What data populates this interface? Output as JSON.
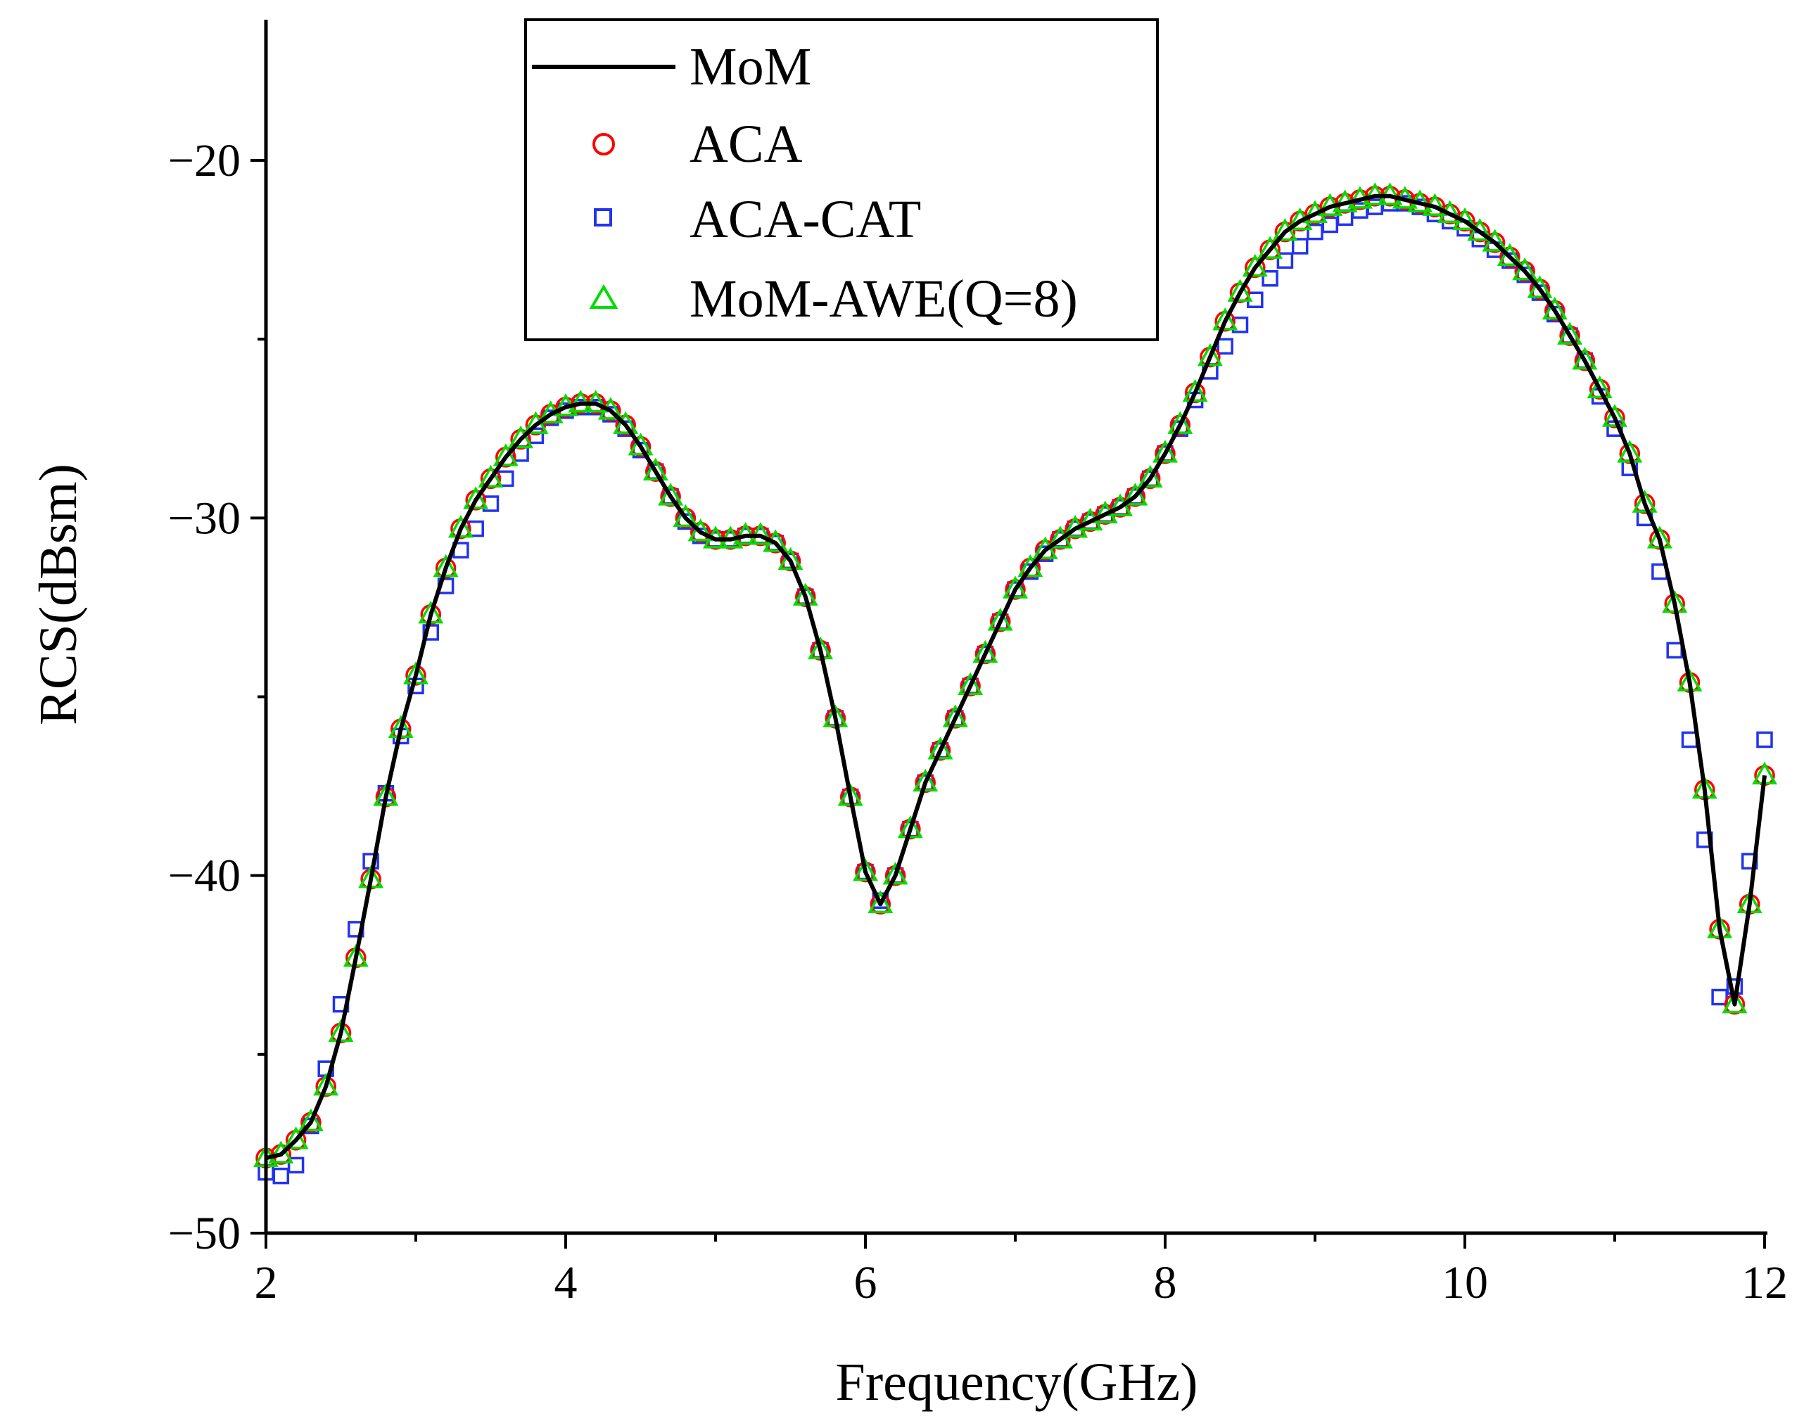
{
  "chart_data": {
    "type": "line",
    "xlabel": "Frequency(GHz)",
    "ylabel": "RCS(dBsm)",
    "xlim": [
      2,
      12
    ],
    "ylim": [
      -50,
      -14.5
    ],
    "xticks": [
      2,
      4,
      6,
      8,
      10,
      12
    ],
    "xtick_labels": [
      "2",
      "4",
      "6",
      "8",
      "10",
      "12"
    ],
    "yticks": [
      -50,
      -40,
      -30,
      -20
    ],
    "ytick_labels": [
      "−50",
      "−40",
      "−30",
      "−20"
    ],
    "grid": false,
    "legend_position": "top-left-inside",
    "x": [
      2.0,
      2.1,
      2.2,
      2.3,
      2.4,
      2.5,
      2.6,
      2.7,
      2.8,
      2.9,
      3.0,
      3.1,
      3.2,
      3.3,
      3.4,
      3.5,
      3.6,
      3.7,
      3.8,
      3.9,
      4.0,
      4.1,
      4.2,
      4.3,
      4.4,
      4.5,
      4.6,
      4.7,
      4.8,
      4.9,
      5.0,
      5.1,
      5.2,
      5.3,
      5.4,
      5.5,
      5.6,
      5.7,
      5.8,
      5.9,
      6.0,
      6.1,
      6.2,
      6.3,
      6.4,
      6.5,
      6.6,
      6.7,
      6.8,
      6.9,
      7.0,
      7.1,
      7.2,
      7.3,
      7.4,
      7.5,
      7.6,
      7.7,
      7.8,
      7.9,
      8.0,
      8.1,
      8.2,
      8.3,
      8.4,
      8.5,
      8.6,
      8.7,
      8.8,
      8.9,
      9.0,
      9.1,
      9.2,
      9.3,
      9.4,
      9.5,
      9.6,
      9.7,
      9.8,
      9.9,
      10.0,
      10.1,
      10.2,
      10.3,
      10.4,
      10.5,
      10.6,
      10.7,
      10.8,
      10.9,
      11.0,
      11.1,
      11.2,
      11.3,
      11.4,
      11.5,
      11.6,
      11.7,
      11.8,
      11.9,
      12.0
    ],
    "series": [
      {
        "name": "MoM",
        "style": "line",
        "color": "#000000",
        "values": [
          -47.9,
          -47.8,
          -47.4,
          -46.9,
          -45.9,
          -44.4,
          -42.3,
          -40.1,
          -37.8,
          -35.9,
          -34.4,
          -32.7,
          -31.4,
          -30.3,
          -29.5,
          -28.9,
          -28.3,
          -27.8,
          -27.4,
          -27.1,
          -26.9,
          -26.8,
          -26.8,
          -27.0,
          -27.4,
          -28.0,
          -28.7,
          -29.4,
          -30.0,
          -30.4,
          -30.6,
          -30.6,
          -30.5,
          -30.5,
          -30.7,
          -31.2,
          -32.2,
          -33.7,
          -35.6,
          -37.8,
          -39.9,
          -40.8,
          -40.0,
          -38.7,
          -37.4,
          -36.5,
          -35.6,
          -34.7,
          -33.8,
          -32.9,
          -32.0,
          -31.4,
          -30.9,
          -30.6,
          -30.3,
          -30.1,
          -29.9,
          -29.7,
          -29.4,
          -28.9,
          -28.2,
          -27.4,
          -26.5,
          -25.5,
          -24.5,
          -23.7,
          -23.0,
          -22.5,
          -22.0,
          -21.7,
          -21.5,
          -21.3,
          -21.2,
          -21.1,
          -21.0,
          -21.0,
          -21.1,
          -21.2,
          -21.3,
          -21.5,
          -21.7,
          -22.0,
          -22.3,
          -22.7,
          -23.1,
          -23.6,
          -24.2,
          -24.9,
          -25.6,
          -26.4,
          -27.2,
          -28.2,
          -29.6,
          -30.6,
          -32.4,
          -34.6,
          -37.6,
          -41.5,
          -43.6,
          -40.8,
          -37.2
        ],
        "display_range": [
          2.0,
          12.0
        ]
      },
      {
        "name": "ACA",
        "style": "circle",
        "color": "#ff0000",
        "values": [
          -47.9,
          -47.8,
          -47.4,
          -46.9,
          -45.9,
          -44.4,
          -42.3,
          -40.1,
          -37.8,
          -35.9,
          -34.4,
          -32.7,
          -31.4,
          -30.3,
          -29.5,
          -28.9,
          -28.3,
          -27.8,
          -27.4,
          -27.1,
          -26.9,
          -26.8,
          -26.8,
          -27.0,
          -27.4,
          -28.0,
          -28.7,
          -29.4,
          -30.0,
          -30.4,
          -30.6,
          -30.6,
          -30.5,
          -30.5,
          -30.7,
          -31.2,
          -32.2,
          -33.7,
          -35.6,
          -37.8,
          -39.9,
          -40.8,
          -40.0,
          -38.7,
          -37.4,
          -36.5,
          -35.6,
          -34.7,
          -33.8,
          -32.9,
          -32.0,
          -31.4,
          -30.9,
          -30.6,
          -30.3,
          -30.1,
          -29.9,
          -29.7,
          -29.4,
          -28.9,
          -28.2,
          -27.4,
          -26.5,
          -25.5,
          -24.5,
          -23.7,
          -23.0,
          -22.5,
          -22.0,
          -21.7,
          -21.5,
          -21.3,
          -21.2,
          -21.1,
          -21.0,
          -21.0,
          -21.1,
          -21.2,
          -21.3,
          -21.5,
          -21.7,
          -22.0,
          -22.3,
          -22.7,
          -23.1,
          -23.6,
          -24.2,
          -24.9,
          -25.6,
          -26.4,
          -27.2,
          -28.2,
          -29.6,
          -30.6,
          -32.4,
          -34.6,
          -37.6,
          -41.5,
          -43.6,
          -40.8,
          -37.2
        ]
      },
      {
        "name": "ACA-CAT",
        "style": "square",
        "color": "#2233ee",
        "values": [
          -48.3,
          -48.4,
          -48.1,
          -47.0,
          -45.4,
          -43.6,
          -41.5,
          -39.6,
          -37.7,
          -36.1,
          -34.7,
          -33.2,
          -31.9,
          -30.9,
          -30.3,
          -29.6,
          -28.9,
          -28.2,
          -27.7,
          -27.2,
          -27.0,
          -26.9,
          -26.9,
          -27.1,
          -27.5,
          -28.1,
          -28.7,
          -29.4,
          -30.1,
          -30.5,
          -30.6,
          -30.6,
          -30.5,
          -30.5,
          -30.7,
          -31.2,
          -32.2,
          -33.7,
          -35.6,
          -37.8,
          -39.9,
          -40.7,
          -40.0,
          -38.7,
          -37.4,
          -36.5,
          -35.6,
          -34.7,
          -33.8,
          -32.9,
          -32.0,
          -31.5,
          -31.0,
          -30.6,
          -30.3,
          -30.1,
          -29.9,
          -29.7,
          -29.4,
          -28.9,
          -28.2,
          -27.5,
          -26.7,
          -25.9,
          -25.2,
          -24.6,
          -23.9,
          -23.3,
          -22.8,
          -22.4,
          -22.0,
          -21.8,
          -21.6,
          -21.4,
          -21.3,
          -21.2,
          -21.2,
          -21.3,
          -21.5,
          -21.7,
          -21.9,
          -22.2,
          -22.5,
          -22.8,
          -23.2,
          -23.7,
          -24.3,
          -24.9,
          -25.6,
          -26.6,
          -27.5,
          -28.6,
          -30.0,
          -31.5,
          -33.7,
          -36.2,
          -39.0,
          -43.4,
          -43.1,
          -39.6,
          -36.2
        ]
      },
      {
        "name": "MoM-AWE(Q=8)",
        "style": "triangle",
        "color": "#00dd00",
        "values": [
          -47.9,
          -47.8,
          -47.4,
          -46.9,
          -45.9,
          -44.4,
          -42.3,
          -40.1,
          -37.8,
          -35.9,
          -34.4,
          -32.7,
          -31.4,
          -30.3,
          -29.5,
          -28.9,
          -28.3,
          -27.8,
          -27.4,
          -27.1,
          -26.9,
          -26.8,
          -26.8,
          -27.0,
          -27.4,
          -28.0,
          -28.7,
          -29.4,
          -30.0,
          -30.4,
          -30.6,
          -30.6,
          -30.5,
          -30.5,
          -30.7,
          -31.2,
          -32.2,
          -33.7,
          -35.6,
          -37.8,
          -39.9,
          -40.8,
          -40.0,
          -38.7,
          -37.4,
          -36.5,
          -35.6,
          -34.7,
          -33.8,
          -32.9,
          -32.0,
          -31.4,
          -30.9,
          -30.6,
          -30.3,
          -30.1,
          -29.9,
          -29.7,
          -29.4,
          -28.9,
          -28.2,
          -27.4,
          -26.5,
          -25.5,
          -24.5,
          -23.7,
          -23.0,
          -22.5,
          -22.0,
          -21.7,
          -21.5,
          -21.3,
          -21.2,
          -21.1,
          -21.0,
          -21.0,
          -21.1,
          -21.2,
          -21.3,
          -21.5,
          -21.7,
          -22.0,
          -22.3,
          -22.7,
          -23.1,
          -23.6,
          -24.2,
          -24.9,
          -25.6,
          -26.4,
          -27.2,
          -28.2,
          -29.6,
          -30.6,
          -32.4,
          -34.6,
          -37.6,
          -41.5,
          -43.6,
          -40.8,
          -37.2
        ]
      }
    ],
    "legend": [
      "MoM",
      "ACA",
      "ACA-CAT",
      "MoM-AWE(Q=8)"
    ]
  }
}
